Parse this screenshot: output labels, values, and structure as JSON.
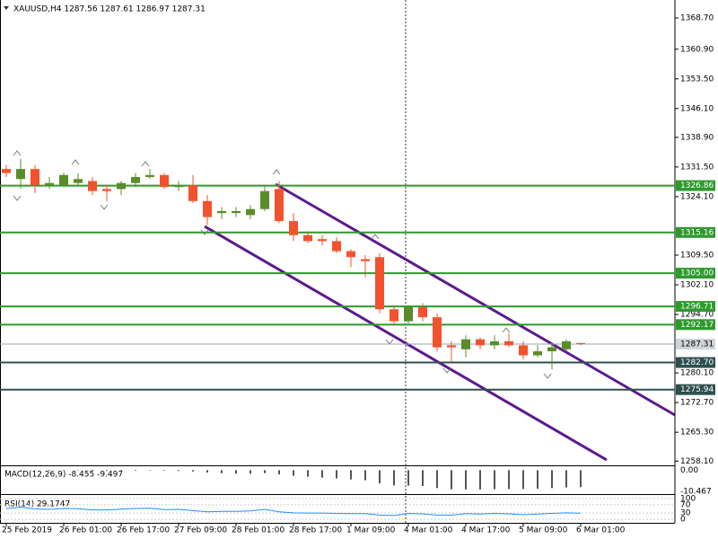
{
  "chart_data": {
    "type": "candlestick",
    "title": "XAUUSD,H4  1287.56 1287.61 1286.97 1287.31",
    "categories": [
      "25 Feb 2019",
      null,
      null,
      null,
      "26 Feb 01:00",
      null,
      null,
      null,
      "26 Feb 17:00",
      null,
      null,
      null,
      "27 Feb 09:00",
      null,
      null,
      null,
      "28 Feb 01:00",
      null,
      null,
      null,
      "28 Feb 17:00",
      null,
      null,
      null,
      "1 Mar 09:00",
      null,
      null,
      null,
      "4 Mar 01:00",
      null,
      null,
      null,
      "4 Mar 17:00",
      null,
      null,
      null,
      "5 Mar 09:00",
      null,
      null,
      null,
      "6 Mar 01:00"
    ],
    "open": [
      1331,
      1328.5,
      1331,
      1327,
      1327,
      1327.5,
      1328,
      1326,
      1326,
      1327.5,
      1329,
      1329.5,
      1326.5,
      1327,
      1323,
      1320,
      1320,
      1319.5,
      1321,
      1326,
      1318,
      1314.5,
      1313.5,
      1313,
      1310.5,
      1308.5,
      1309,
      1296,
      1293,
      1296.5,
      1294,
      1287,
      1286,
      1288.5,
      1287,
      1288,
      1287,
      1284.5,
      1285.5,
      1286,
      1287.56
    ],
    "high": [
      1332,
      1333.5,
      1332,
      1329,
      1330,
      1330,
      1329,
      1327,
      1328,
      1330,
      1331,
      1330,
      1328,
      1329.5,
      1324.5,
      1321.5,
      1321.5,
      1322,
      1327,
      1328,
      1320,
      1315.5,
      1314.5,
      1314,
      1311,
      1309.5,
      1310,
      1297,
      1297,
      1297.5,
      1295,
      1288,
      1289.5,
      1289,
      1289.5,
      1290,
      1288,
      1287,
      1287.5,
      1288.5,
      1287.61
    ],
    "low": [
      1329,
      1326,
      1325,
      1326,
      1326.5,
      1327,
      1324.5,
      1323,
      1324.5,
      1326.5,
      1328.5,
      1326,
      1325.5,
      1322.5,
      1317,
      1318.5,
      1319,
      1318.5,
      1320.5,
      1317.5,
      1313,
      1312.5,
      1312,
      1310,
      1306.5,
      1304,
      1295,
      1292,
      1292.5,
      1293,
      1285.5,
      1283,
      1284,
      1286,
      1286,
      1286.5,
      1283.5,
      1284,
      1281,
      1285.5,
      1286.97
    ],
    "close": [
      1330,
      1331,
      1327,
      1327.5,
      1329.5,
      1328.5,
      1325.5,
      1325.5,
      1327.5,
      1329,
      1329.5,
      1326.5,
      1327,
      1323,
      1319,
      1320.5,
      1320.5,
      1321,
      1325.5,
      1318,
      1314.5,
      1313,
      1313,
      1310.5,
      1309,
      1308,
      1296,
      1293,
      1296.5,
      1294,
      1286.5,
      1286.5,
      1288.5,
      1287,
      1288,
      1287,
      1284.5,
      1285.5,
      1286.5,
      1288,
      1287.31
    ],
    "up_color": "#5b8c2a",
    "down_color": "#f2522e",
    "ylim": [
      1257.04,
      1373.18
    ],
    "yticks": [
      {
        "value": 1368.7,
        "label": "1368.70"
      },
      {
        "value": 1360.9,
        "label": "1360.90"
      },
      {
        "value": 1353.5,
        "label": "1353.50"
      },
      {
        "value": 1346.1,
        "label": "1346.10"
      },
      {
        "value": 1338.9,
        "label": "1338.90"
      },
      {
        "value": 1331.5,
        "label": "1331.50"
      },
      {
        "value": 1324.1,
        "label": "1324.10"
      },
      {
        "value": 1309.5,
        "label": "1309.50"
      },
      {
        "value": 1302.1,
        "label": "1302.10"
      },
      {
        "value": 1294.7,
        "label": "1294.70"
      },
      {
        "value": 1280.1,
        "label": "1280.10"
      },
      {
        "value": 1272.7,
        "label": "1272.70"
      },
      {
        "value": 1265.3,
        "label": "1265.30"
      },
      {
        "value": 1258.1,
        "label": "1258.10"
      }
    ],
    "levels": [
      1326.86,
      1315.16,
      {
        "value": 1305,
        "label": "1305.00"
      },
      1296.71,
      1292.17,
      {
        "value": 1282.7,
        "label": "1282.70"
      },
      1275.94
    ],
    "level_colors": [
      "#2e9a2e",
      "#2e9a2e",
      "#2e9a2e",
      "#2e9a2e",
      "#2e9a2e",
      "#2f4f4f",
      "#2f4f4f"
    ],
    "current_price": 1287.31,
    "macd": {
      "title": "MACD(12,26,9) -8.455 -9.497",
      "ylim": [
        -11,
        1.5
      ],
      "yticks": [
        {
          "value": 0,
          "label": "0.00"
        },
        -10.467
      ],
      "values": [
        -0.3,
        -0.2,
        -0.2,
        -0.3,
        -0.2,
        -0.2,
        -0.3,
        -0.4,
        -0.4,
        -0.3,
        -0.2,
        -0.3,
        -0.4,
        -0.7,
        -1.2,
        -1.5,
        -1.7,
        -1.8,
        -1.5,
        -2.1,
        -2.8,
        -3.3,
        -3.7,
        -4.1,
        -4.6,
        -5.0,
        -6.6,
        -7.6,
        -7.7,
        -7.9,
        -8.9,
        -9.5,
        -9.6,
        -9.6,
        -9.5,
        -9.4,
        -9.4,
        -9.2,
        -8.9,
        -8.6,
        -8.455
      ]
    },
    "rsi": {
      "title": "RSI(14) 29.1747",
      "ylim": [
        0,
        100
      ],
      "yticks": [
        100,
        70,
        30,
        0
      ],
      "values": [
        52,
        58,
        50,
        48,
        52,
        51,
        45,
        45,
        49,
        52,
        53,
        47,
        48,
        42,
        36,
        38,
        38,
        40,
        48,
        36,
        31,
        30,
        30,
        28,
        27,
        27,
        20,
        18,
        28,
        26,
        20,
        20,
        27,
        25,
        28,
        26,
        22,
        25,
        28,
        31,
        29.1747
      ]
    }
  }
}
